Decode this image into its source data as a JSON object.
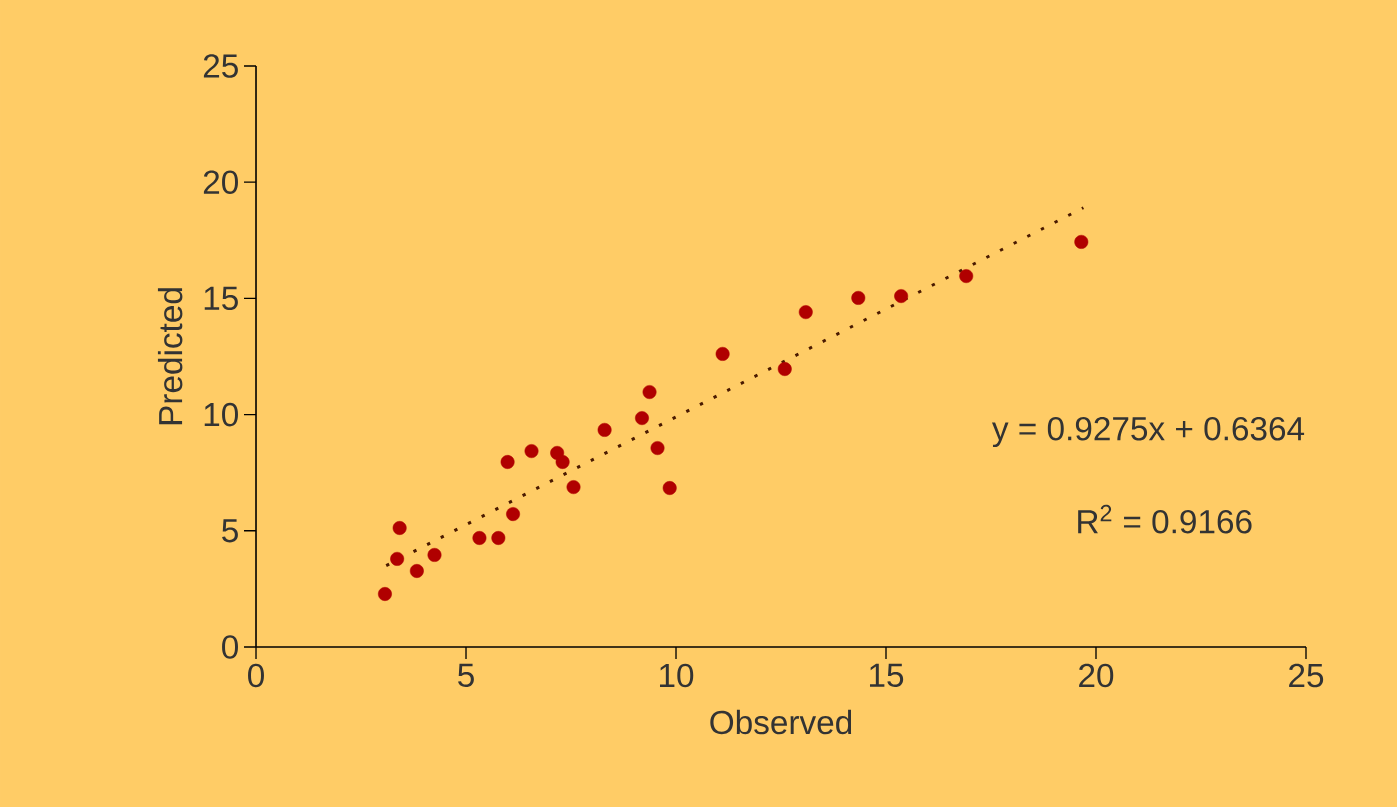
{
  "chart_data": {
    "type": "scatter",
    "xlabel": "Observed",
    "ylabel": "Predicted",
    "xlim": [
      0,
      25
    ],
    "ylim": [
      0,
      25
    ],
    "xticks": [
      0,
      5,
      10,
      15,
      20,
      25
    ],
    "yticks": [
      0,
      5,
      10,
      15,
      20,
      25
    ],
    "marker": "circle",
    "grid": false,
    "annotations": [
      "y = 0.9275x + 0.6364",
      "R$^{2}$ = 0.9166"
    ],
    "series": [
      {
        "color": "#b00000",
        "x": [
          3.07,
          3.36,
          3.42,
          3.83,
          4.25,
          5.32,
          5.77,
          6.12,
          5.99,
          6.56,
          7.17,
          7.3,
          7.56,
          8.3,
          9.19,
          9.37,
          9.56,
          9.85,
          11.11,
          12.59,
          13.09,
          14.34,
          15.36,
          16.91,
          19.65
        ],
        "values": [
          2.28,
          3.79,
          5.12,
          3.27,
          3.96,
          4.69,
          4.69,
          5.72,
          7.96,
          8.43,
          8.35,
          7.96,
          6.88,
          9.34,
          9.85,
          10.97,
          8.56,
          6.84,
          12.61,
          11.96,
          14.41,
          15.02,
          15.1,
          15.96,
          17.43
        ]
      },
      {
        "type": "line",
        "color": "#4a1a00",
        "marker": "none",
        "line_style": "dotted",
        "x": [
          3.1,
          19.7
        ],
        "values": [
          3.5,
          18.9
        ]
      }
    ]
  }
}
